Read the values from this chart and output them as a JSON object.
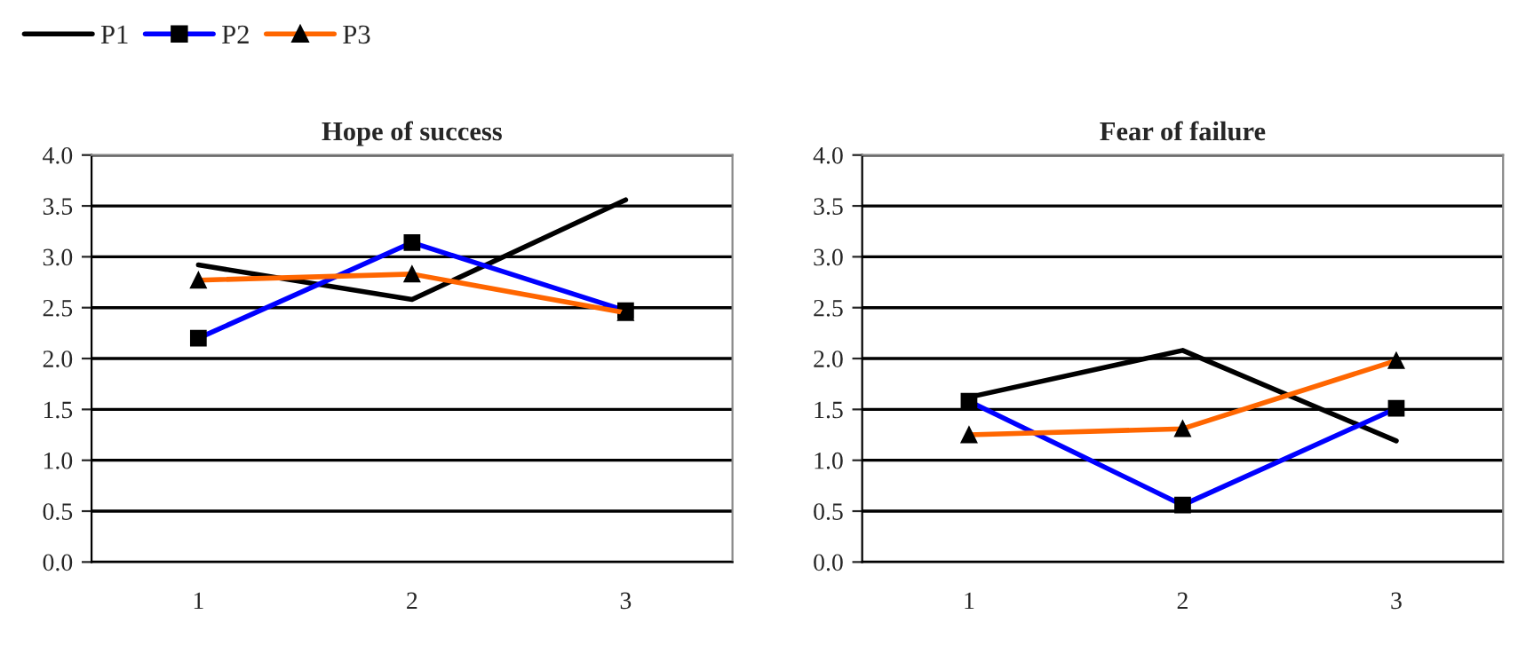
{
  "chart_data": [
    {
      "type": "line",
      "title": "Hope of success",
      "categories": [
        "1",
        "2",
        "3"
      ],
      "ylim": [
        0,
        4
      ],
      "yticks": [
        {
          "value": 0,
          "label": "0.0"
        },
        {
          "value": 0.5,
          "label": "0.5"
        },
        {
          "value": 1,
          "label": "1.0"
        },
        {
          "value": 1.5,
          "label": "1.5"
        },
        {
          "value": 2,
          "label": "2.0"
        },
        {
          "value": 2.5,
          "label": "2.5"
        },
        {
          "value": 3,
          "label": "3.0"
        },
        {
          "value": 3.5,
          "label": "3.5"
        },
        {
          "value": 4,
          "label": "4.0"
        }
      ],
      "grid": "y",
      "legend": "top left",
      "series": [
        {
          "name": "P1",
          "color": "#000000",
          "marker": "none",
          "values": [
            2.92,
            2.58,
            3.56
          ]
        },
        {
          "name": "P2",
          "color": "#0000ff",
          "marker": "square",
          "values": [
            2.2,
            3.14,
            2.47
          ]
        },
        {
          "name": "P3",
          "color": "#ff6600",
          "marker": "triangle",
          "values": [
            2.77,
            2.83,
            2.45
          ]
        }
      ]
    },
    {
      "type": "line",
      "title": "Fear of failure",
      "categories": [
        "1",
        "2",
        "3"
      ],
      "ylim": [
        0,
        4
      ],
      "yticks": [
        {
          "value": 0,
          "label": "0.0"
        },
        {
          "value": 0.5,
          "label": "0.5"
        },
        {
          "value": 1,
          "label": "1.0"
        },
        {
          "value": 1.5,
          "label": "1.5"
        },
        {
          "value": 2,
          "label": "2.0"
        },
        {
          "value": 2.5,
          "label": "2.5"
        },
        {
          "value": 3,
          "label": "3.0"
        },
        {
          "value": 3.5,
          "label": "3.5"
        },
        {
          "value": 4,
          "label": "4.0"
        }
      ],
      "grid": "y",
      "series": [
        {
          "color": "#000000",
          "marker": "none",
          "values": [
            1.62,
            2.08,
            1.19
          ]
        },
        {
          "color": "#0000ff",
          "marker": "square",
          "values": [
            1.58,
            0.56,
            1.51
          ]
        },
        {
          "color": "#ff6600",
          "marker": "triangle",
          "values": [
            1.25,
            1.31,
            1.98
          ]
        }
      ]
    }
  ]
}
